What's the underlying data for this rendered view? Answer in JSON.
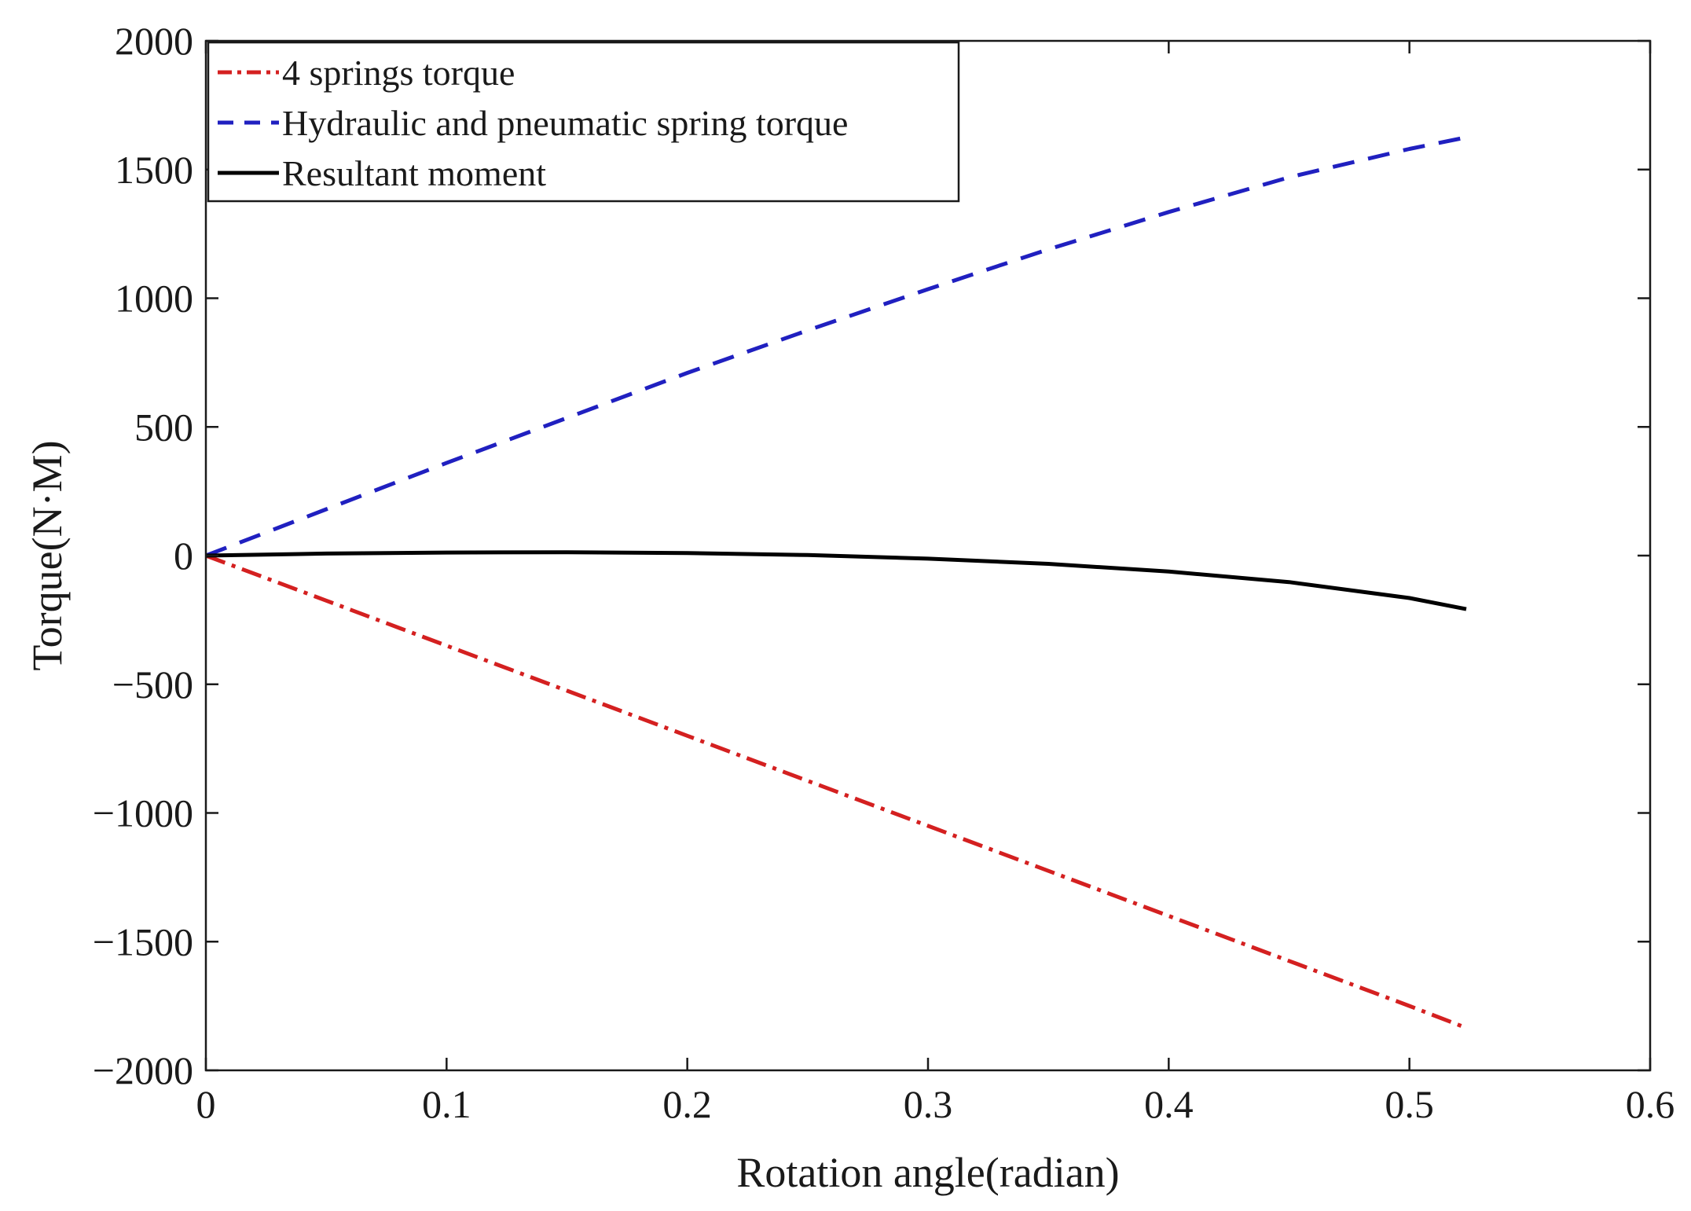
{
  "chart_data": {
    "type": "line",
    "title": "",
    "xlabel": "Rotation angle(radian)",
    "ylabel": "Torque(N·M)",
    "xlim": [
      0,
      0.6
    ],
    "ylim": [
      -2000,
      2000
    ],
    "xticks": [
      0,
      0.1,
      0.2,
      0.3,
      0.4,
      0.5,
      0.6
    ],
    "xtick_labels": [
      "0",
      "0.1",
      "0.2",
      "0.3",
      "0.4",
      "0.5",
      "0.6"
    ],
    "yticks": [
      -2000,
      -1500,
      -1000,
      -500,
      0,
      500,
      1000,
      1500,
      2000
    ],
    "ytick_labels": [
      "−2000",
      "−1500",
      "−1000",
      "−500",
      "0",
      "500",
      "1000",
      "1500",
      "2000"
    ],
    "grid": false,
    "legend_position": "top-left",
    "series": [
      {
        "name": "4 springs torque",
        "color": "#d42020",
        "style": "dash-dot",
        "x": [
          0,
          0.05,
          0.1,
          0.15,
          0.2,
          0.25,
          0.3,
          0.35,
          0.4,
          0.45,
          0.5,
          0.5236
        ],
        "y": [
          0,
          -175,
          -350,
          -525,
          -700,
          -875,
          -1050,
          -1225,
          -1400,
          -1575,
          -1750,
          -1835
        ]
      },
      {
        "name": "Hydraulic and pneumatic spring torque",
        "color": "#2020c0",
        "style": "dashed",
        "x": [
          0,
          0.05,
          0.1,
          0.15,
          0.2,
          0.25,
          0.3,
          0.35,
          0.4,
          0.45,
          0.5,
          0.5236
        ],
        "y": [
          0,
          180,
          360,
          535,
          710,
          875,
          1035,
          1190,
          1335,
          1470,
          1580,
          1625
        ]
      },
      {
        "name": "Resultant moment",
        "color": "#000000",
        "style": "solid",
        "x": [
          0,
          0.05,
          0.1,
          0.15,
          0.2,
          0.25,
          0.3,
          0.35,
          0.4,
          0.45,
          0.5,
          0.5236
        ],
        "y": [
          0,
          8,
          12,
          13,
          10,
          2,
          -12,
          -32,
          -62,
          -103,
          -165,
          -208
        ]
      }
    ]
  }
}
